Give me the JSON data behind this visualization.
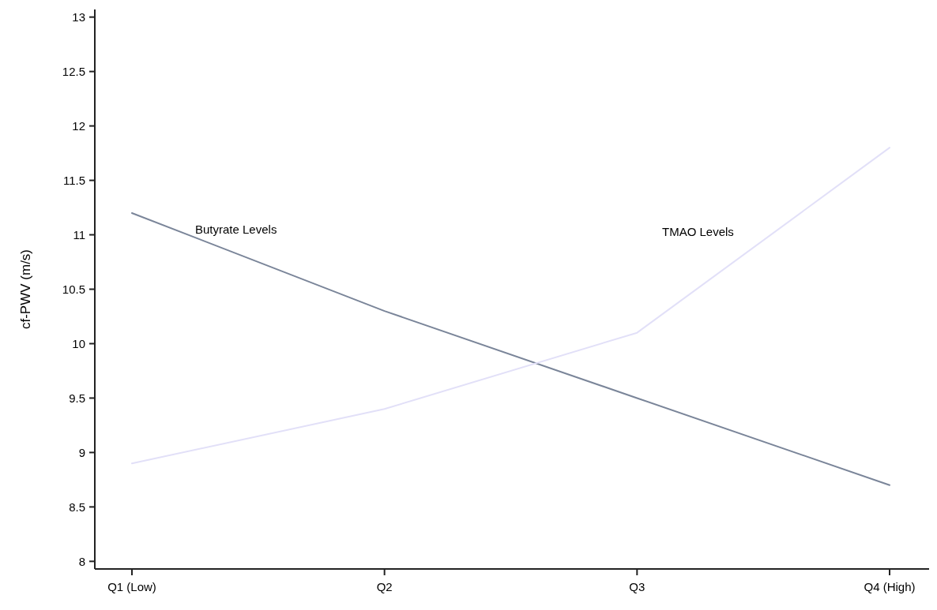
{
  "chart_data": {
    "type": "line",
    "ylabel": "cf-PWV (m/s)",
    "categories": [
      "Q1 (Low)",
      "Q2",
      "Q3",
      "Q4 (High)"
    ],
    "series": [
      {
        "name": "Butyrate Levels",
        "color": "#7a8599",
        "values": [
          11.2,
          10.3,
          9.5,
          8.7
        ]
      },
      {
        "name": "TMAO Levels",
        "color": "#e2e0f8",
        "values": [
          8.9,
          9.4,
          10.1,
          11.8
        ]
      }
    ],
    "ylim": [
      7.93,
      13.07
    ],
    "yticks": [
      8,
      8.5,
      9,
      9.5,
      10,
      10.5,
      11,
      11.5,
      12,
      12.5,
      13
    ],
    "grid": false,
    "legend": false,
    "marker": "none",
    "line_style": "solid"
  }
}
